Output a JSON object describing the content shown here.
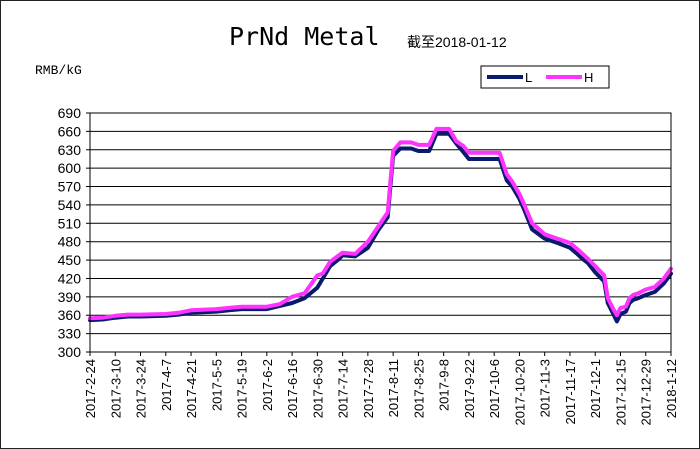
{
  "chart_data": {
    "type": "line",
    "title": "PrNd Metal",
    "subtitle": "截至2018-01-12",
    "ylabel": "RMB/kG",
    "xlabel": "",
    "ylim": [
      300,
      690
    ],
    "yticks": [
      300,
      330,
      360,
      390,
      420,
      450,
      480,
      510,
      540,
      570,
      600,
      630,
      660,
      690
    ],
    "categories": [
      "2017-2-24",
      "2017-3-10",
      "2017-3-24",
      "2017-4-7",
      "2017-4-21",
      "2017-5-5",
      "2017-5-19",
      "2017-6-2",
      "2017-6-16",
      "2017-6-30",
      "2017-7-14",
      "2017-7-28",
      "2017-8-11",
      "2017-8-25",
      "2017-9-8",
      "2017-9-22",
      "2017-10-6",
      "2017-10-20",
      "2017-11-3",
      "2017-11-17",
      "2017-12-1",
      "2017-12-15",
      "2017-12-29",
      "2018-1-12"
    ],
    "grid": true,
    "legend_position": "top-right",
    "series": [
      {
        "name": "L",
        "color": "#0a1a6e",
        "points": [
          [
            "2017-2-24",
            352
          ],
          [
            "2017-3-3",
            353
          ],
          [
            "2017-3-10",
            356
          ],
          [
            "2017-3-17",
            358
          ],
          [
            "2017-3-24",
            358
          ],
          [
            "2017-4-7",
            359
          ],
          [
            "2017-4-14",
            361
          ],
          [
            "2017-4-21",
            364
          ],
          [
            "2017-5-5",
            366
          ],
          [
            "2017-5-12",
            368
          ],
          [
            "2017-5-19",
            370
          ],
          [
            "2017-5-26",
            370
          ],
          [
            "2017-6-2",
            370
          ],
          [
            "2017-6-9",
            375
          ],
          [
            "2017-6-16",
            380
          ],
          [
            "2017-6-23",
            388
          ],
          [
            "2017-6-30",
            405
          ],
          [
            "2017-7-3",
            420
          ],
          [
            "2017-7-7",
            440
          ],
          [
            "2017-7-12",
            452
          ],
          [
            "2017-7-14",
            458
          ],
          [
            "2017-7-21",
            456
          ],
          [
            "2017-7-28",
            470
          ],
          [
            "2017-8-3",
            500
          ],
          [
            "2017-8-8",
            520
          ],
          [
            "2017-8-11",
            620
          ],
          [
            "2017-8-15",
            632
          ],
          [
            "2017-8-21",
            632
          ],
          [
            "2017-8-25",
            628
          ],
          [
            "2017-8-31",
            628
          ],
          [
            "2017-9-4",
            656
          ],
          [
            "2017-9-8",
            656
          ],
          [
            "2017-9-11",
            656
          ],
          [
            "2017-9-15",
            640
          ],
          [
            "2017-9-19",
            626
          ],
          [
            "2017-9-22",
            615
          ],
          [
            "2017-9-29",
            615
          ],
          [
            "2017-10-6",
            615
          ],
          [
            "2017-10-9",
            615
          ],
          [
            "2017-10-13",
            580
          ],
          [
            "2017-10-16",
            570
          ],
          [
            "2017-10-20",
            550
          ],
          [
            "2017-10-23",
            530
          ],
          [
            "2017-10-27",
            500
          ],
          [
            "2017-11-3",
            485
          ],
          [
            "2017-11-10",
            478
          ],
          [
            "2017-11-17",
            470
          ],
          [
            "2017-11-21",
            460
          ],
          [
            "2017-11-24",
            452
          ],
          [
            "2017-11-27",
            445
          ],
          [
            "2017-12-1",
            430
          ],
          [
            "2017-12-6",
            415
          ],
          [
            "2017-12-8",
            380
          ],
          [
            "2017-12-11",
            362
          ],
          [
            "2017-12-13",
            350
          ],
          [
            "2017-12-15",
            362
          ],
          [
            "2017-12-18",
            366
          ],
          [
            "2017-12-20",
            380
          ],
          [
            "2017-12-22",
            385
          ],
          [
            "2017-12-25",
            388
          ],
          [
            "2017-12-29",
            393
          ],
          [
            "2018-1-3",
            398
          ],
          [
            "2018-1-8",
            412
          ],
          [
            "2018-1-12",
            428
          ]
        ]
      },
      {
        "name": "H",
        "color": "#ff33ff",
        "points": [
          [
            "2017-2-24",
            355
          ],
          [
            "2017-3-3",
            356
          ],
          [
            "2017-3-10",
            359
          ],
          [
            "2017-3-17",
            361
          ],
          [
            "2017-3-24",
            361
          ],
          [
            "2017-4-7",
            362
          ],
          [
            "2017-4-14",
            364
          ],
          [
            "2017-4-21",
            368
          ],
          [
            "2017-5-5",
            370
          ],
          [
            "2017-5-12",
            372
          ],
          [
            "2017-5-19",
            374
          ],
          [
            "2017-5-26",
            374
          ],
          [
            "2017-6-2",
            374
          ],
          [
            "2017-6-9",
            378
          ],
          [
            "2017-6-16",
            390
          ],
          [
            "2017-6-23",
            396
          ],
          [
            "2017-6-30",
            425
          ],
          [
            "2017-7-3",
            428
          ],
          [
            "2017-7-7",
            447
          ],
          [
            "2017-7-12",
            458
          ],
          [
            "2017-7-14",
            462
          ],
          [
            "2017-7-21",
            460
          ],
          [
            "2017-7-28",
            480
          ],
          [
            "2017-8-3",
            506
          ],
          [
            "2017-8-8",
            528
          ],
          [
            "2017-8-11",
            628
          ],
          [
            "2017-8-15",
            642
          ],
          [
            "2017-8-21",
            642
          ],
          [
            "2017-8-25",
            638
          ],
          [
            "2017-8-31",
            638
          ],
          [
            "2017-9-4",
            664
          ],
          [
            "2017-9-8",
            664
          ],
          [
            "2017-9-11",
            664
          ],
          [
            "2017-9-15",
            644
          ],
          [
            "2017-9-19",
            636
          ],
          [
            "2017-9-22",
            625
          ],
          [
            "2017-9-29",
            625
          ],
          [
            "2017-10-6",
            625
          ],
          [
            "2017-10-9",
            625
          ],
          [
            "2017-10-13",
            590
          ],
          [
            "2017-10-16",
            578
          ],
          [
            "2017-10-20",
            558
          ],
          [
            "2017-10-23",
            538
          ],
          [
            "2017-10-27",
            510
          ],
          [
            "2017-11-3",
            492
          ],
          [
            "2017-11-10",
            485
          ],
          [
            "2017-11-17",
            478
          ],
          [
            "2017-11-21",
            468
          ],
          [
            "2017-11-24",
            460
          ],
          [
            "2017-11-27",
            452
          ],
          [
            "2017-12-1",
            440
          ],
          [
            "2017-12-6",
            425
          ],
          [
            "2017-12-8",
            388
          ],
          [
            "2017-12-11",
            370
          ],
          [
            "2017-12-13",
            360
          ],
          [
            "2017-12-15",
            372
          ],
          [
            "2017-12-18",
            374
          ],
          [
            "2017-12-20",
            388
          ],
          [
            "2017-12-22",
            393
          ],
          [
            "2017-12-25",
            396
          ],
          [
            "2017-12-29",
            402
          ],
          [
            "2018-1-3",
            406
          ],
          [
            "2018-1-8",
            420
          ],
          [
            "2018-1-12",
            436
          ]
        ]
      }
    ]
  }
}
